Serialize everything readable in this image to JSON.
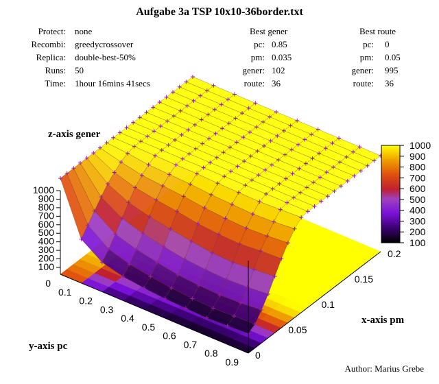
{
  "title": "Aufgabe 3a TSP 10x10-36border.txt",
  "info_left": [
    {
      "key": "Protect:",
      "value": "none"
    },
    {
      "key": "Recombi:",
      "value": "greedycrossover"
    },
    {
      "key": "Replica:",
      "value": "double-best-50%"
    },
    {
      "key": "Runs:",
      "value": "50"
    },
    {
      "key": "Time:",
      "value": "1hour 16mins 41secs"
    }
  ],
  "best_gener": {
    "header": "Best gener",
    "rows": [
      {
        "key": "pc:",
        "value": "0.85"
      },
      {
        "key": "pm:",
        "value": "0.035"
      },
      {
        "key": "gener:",
        "value": "102"
      },
      {
        "key": "route:",
        "value": "36"
      }
    ]
  },
  "best_route": {
    "header": "Best route",
    "rows": [
      {
        "key": "pc:",
        "value": "0"
      },
      {
        "key": "pm:",
        "value": "0.05"
      },
      {
        "key": "gener:",
        "value": "995"
      },
      {
        "key": "route:",
        "value": "36"
      }
    ]
  },
  "author": "Author: Marius Grebe",
  "chart_data": {
    "type": "surface3d",
    "title": "Aufgabe 3a TSP 10x10-36border.txt",
    "zlabel": "z-axis gener",
    "xlabel": "x-axis pm",
    "ylabel": "y-axis pc",
    "z_ticks": [
      "100",
      "200",
      "300",
      "400",
      "500",
      "600",
      "700",
      "800",
      "900",
      "1000"
    ],
    "y_ticks": [
      "0",
      "0.1",
      "0.2",
      "0.3",
      "0.4",
      "0.5",
      "0.6",
      "0.7",
      "0.8",
      "0.9"
    ],
    "x_ticks": [
      "0",
      "0.05",
      "0.1",
      "0.15",
      "0.2"
    ],
    "colorbar_ticks": [
      "100",
      "200",
      "300",
      "400",
      "500",
      "600",
      "700",
      "800",
      "900",
      "1000"
    ],
    "zlim": [
      100,
      1000
    ],
    "x_range": [
      0,
      0.2
    ],
    "y_range": [
      0,
      0.9
    ],
    "pc_values": [
      0.9,
      0.8,
      0.7,
      0.6,
      0.5,
      0.4,
      0.3,
      0.2,
      0.1,
      0
    ],
    "pm_values": [
      0.0,
      0.01,
      0.02,
      0.03,
      0.04,
      0.05,
      0.06,
      0.07,
      0.08,
      0.09,
      0.1,
      0.11,
      0.12,
      0.13,
      0.14,
      0.15,
      0.16,
      0.17,
      0.18,
      0.19,
      0.2
    ],
    "gener": [
      [
        150,
        200,
        300,
        420,
        560,
        700,
        820,
        920,
        990,
        1000,
        1000,
        1000,
        1000,
        1000,
        1000,
        1000,
        1000,
        1000,
        1000,
        1000,
        1000
      ],
      [
        140,
        190,
        280,
        400,
        540,
        690,
        800,
        900,
        980,
        1000,
        1000,
        1000,
        1000,
        1000,
        1000,
        1000,
        1000,
        1000,
        1000,
        1000,
        1000
      ],
      [
        130,
        180,
        270,
        390,
        520,
        670,
        790,
        890,
        970,
        1000,
        1000,
        1000,
        1000,
        1000,
        1000,
        1000,
        1000,
        1000,
        1000,
        1000,
        1000
      ],
      [
        140,
        190,
        280,
        400,
        530,
        680,
        800,
        900,
        975,
        1000,
        1000,
        1000,
        1000,
        1000,
        1000,
        1000,
        1000,
        1000,
        1000,
        1000,
        1000
      ],
      [
        150,
        210,
        300,
        420,
        560,
        700,
        820,
        910,
        980,
        1000,
        1000,
        1000,
        1000,
        1000,
        1000,
        1000,
        1000,
        1000,
        1000,
        1000,
        1000
      ],
      [
        170,
        240,
        340,
        460,
        600,
        740,
        850,
        930,
        990,
        1000,
        1000,
        1000,
        1000,
        1000,
        1000,
        1000,
        1000,
        1000,
        1000,
        1000,
        1000
      ],
      [
        200,
        280,
        390,
        510,
        640,
        770,
        870,
        940,
        990,
        1000,
        1000,
        1000,
        1000,
        1000,
        1000,
        1000,
        1000,
        1000,
        1000,
        1000,
        1000
      ],
      [
        260,
        350,
        460,
        580,
        700,
        810,
        890,
        950,
        995,
        1000,
        1000,
        1000,
        1000,
        1000,
        1000,
        1000,
        1000,
        1000,
        1000,
        1000,
        1000
      ],
      [
        420,
        520,
        620,
        720,
        810,
        880,
        940,
        980,
        1000,
        1000,
        1000,
        1000,
        1000,
        1000,
        1000,
        1000,
        1000,
        1000,
        1000,
        1000,
        1000
      ],
      [
        1000,
        1000,
        1000,
        1000,
        1000,
        1000,
        1000,
        1000,
        1000,
        1000,
        1000,
        1000,
        1000,
        1000,
        1000,
        1000,
        1000,
        1000,
        1000,
        1000,
        1000
      ]
    ]
  }
}
